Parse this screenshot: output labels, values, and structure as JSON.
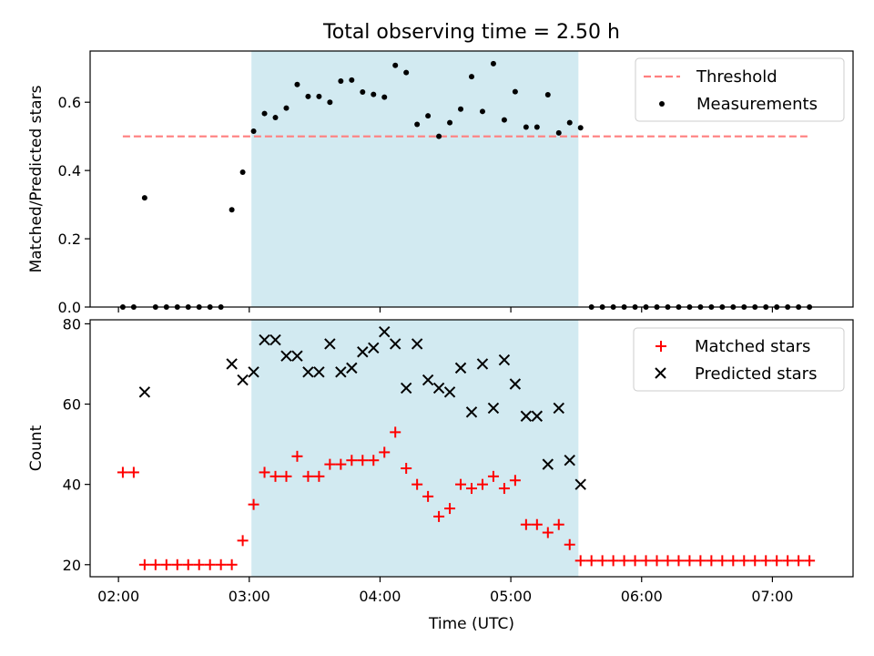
{
  "title": "Total observing time = 2.50 h",
  "colors": {
    "highlight": "#add8e6",
    "threshold": "#ff7f7f",
    "measurements": "#000000",
    "matched": "#ff0000",
    "predicted": "#000000"
  },
  "chart_data": [
    {
      "type": "scatter",
      "ylabel": "Matched/Predicted stars",
      "xlabel": "",
      "xlim": [
        "01:47",
        "07:37"
      ],
      "ylim": [
        0,
        0.75
      ],
      "yticks": [
        0.0,
        0.2,
        0.4,
        0.6
      ],
      "ytick_labels": [
        "0.0",
        "0.2",
        "0.4",
        "0.6"
      ],
      "highlight_span": [
        "03:01",
        "05:31"
      ],
      "legend_position": "upper right",
      "legend": [
        "Threshold",
        "Measurements"
      ],
      "threshold": {
        "name": "Threshold",
        "value": 0.5,
        "x_range": [
          "02:02",
          "07:17"
        ],
        "style": "dashed"
      },
      "measurements": {
        "name": "Measurements",
        "x": [
          "02:02",
          "02:07",
          "02:12",
          "02:17",
          "02:22",
          "02:27",
          "02:32",
          "02:37",
          "02:42",
          "02:47",
          "02:52",
          "02:57",
          "03:02",
          "03:07",
          "03:12",
          "03:17",
          "03:22",
          "03:27",
          "03:32",
          "03:37",
          "03:42",
          "03:47",
          "03:52",
          "03:57",
          "04:02",
          "04:07",
          "04:12",
          "04:17",
          "04:22",
          "04:27",
          "04:32",
          "04:37",
          "04:42",
          "04:47",
          "04:52",
          "04:57",
          "05:02",
          "05:07",
          "05:12",
          "05:17",
          "05:22",
          "05:27",
          "05:32",
          "05:37",
          "05:42",
          "05:47",
          "05:52",
          "05:57",
          "06:02",
          "06:07",
          "06:12",
          "06:17",
          "06:22",
          "06:27",
          "06:32",
          "06:37",
          "06:42",
          "06:47",
          "06:52",
          "06:57",
          "07:02",
          "07:07",
          "07:12",
          "07:17"
        ],
        "y": [
          0,
          0,
          0.32,
          0,
          0,
          0,
          0,
          0,
          0,
          0,
          0.285,
          0.395,
          0.515,
          0.567,
          0.555,
          0.583,
          0.652,
          0.617,
          0.617,
          0.6,
          0.662,
          0.665,
          0.63,
          0.623,
          0.615,
          0.708,
          0.687,
          0.535,
          0.56,
          0.5,
          0.54,
          0.58,
          0.675,
          0.573,
          0.713,
          0.548,
          0.631,
          0.527,
          0.527,
          0.622,
          0.51,
          0.54,
          0.525,
          0,
          0,
          0,
          0,
          0,
          0,
          0,
          0,
          0,
          0,
          0,
          0,
          0,
          0,
          0,
          0,
          0,
          0,
          0,
          0,
          0
        ]
      }
    },
    {
      "type": "scatter",
      "ylabel": "Count",
      "xlabel": "Time (UTC)",
      "xlim": [
        "01:47",
        "07:37"
      ],
      "ylim": [
        17,
        81
      ],
      "xticks": [
        "02:00",
        "03:00",
        "04:00",
        "05:00",
        "06:00",
        "07:00"
      ],
      "yticks": [
        20,
        40,
        60,
        80
      ],
      "ytick_labels": [
        "20",
        "40",
        "60",
        "80"
      ],
      "highlight_span": [
        "03:01",
        "05:31"
      ],
      "legend_position": "upper right",
      "legend": [
        "Matched stars",
        "Predicted stars"
      ],
      "series": [
        {
          "name": "Matched stars",
          "marker": "+",
          "x": [
            "02:02",
            "02:07",
            "02:12",
            "02:17",
            "02:22",
            "02:27",
            "02:32",
            "02:37",
            "02:42",
            "02:47",
            "02:52",
            "02:57",
            "03:02",
            "03:07",
            "03:12",
            "03:17",
            "03:22",
            "03:27",
            "03:32",
            "03:37",
            "03:42",
            "03:47",
            "03:52",
            "03:57",
            "04:02",
            "04:07",
            "04:12",
            "04:17",
            "04:22",
            "04:27",
            "04:32",
            "04:37",
            "04:42",
            "04:47",
            "04:52",
            "04:57",
            "05:02",
            "05:07",
            "05:12",
            "05:17",
            "05:22",
            "05:27",
            "05:32",
            "05:37",
            "05:42",
            "05:47",
            "05:52",
            "05:57",
            "06:02",
            "06:07",
            "06:12",
            "06:17",
            "06:22",
            "06:27",
            "06:32",
            "06:37",
            "06:42",
            "06:47",
            "06:52",
            "06:57",
            "07:02",
            "07:07",
            "07:12",
            "07:17"
          ],
          "y": [
            43,
            43,
            20,
            20,
            20,
            20,
            20,
            20,
            20,
            20,
            20,
            26,
            35,
            43,
            42,
            42,
            47,
            42,
            42,
            45,
            45,
            46,
            46,
            46,
            48,
            53,
            44,
            40,
            37,
            32,
            34,
            40,
            39,
            40,
            42,
            39,
            41,
            30,
            30,
            28,
            30,
            25,
            21,
            21,
            21,
            21,
            21,
            21,
            21,
            21,
            21,
            21,
            21,
            21,
            21,
            21,
            21,
            21,
            21,
            21,
            21,
            21,
            21,
            21
          ]
        },
        {
          "name": "Predicted stars",
          "marker": "x",
          "x": [
            "02:12",
            "02:52",
            "02:57",
            "03:02",
            "03:07",
            "03:12",
            "03:17",
            "03:22",
            "03:27",
            "03:32",
            "03:37",
            "03:42",
            "03:47",
            "03:52",
            "03:57",
            "04:02",
            "04:07",
            "04:12",
            "04:17",
            "04:22",
            "04:27",
            "04:32",
            "04:37",
            "04:42",
            "04:47",
            "04:52",
            "04:57",
            "05:02",
            "05:07",
            "05:12",
            "05:17",
            "05:22",
            "05:27",
            "05:32"
          ],
          "y": [
            63,
            70,
            66,
            68,
            76,
            76,
            72,
            72,
            68,
            68,
            75,
            68,
            69,
            73,
            74,
            78,
            75,
            64,
            75,
            66,
            64,
            63,
            69,
            58,
            70,
            59,
            71,
            65,
            57,
            57,
            45,
            59,
            46,
            40
          ]
        }
      ]
    }
  ]
}
